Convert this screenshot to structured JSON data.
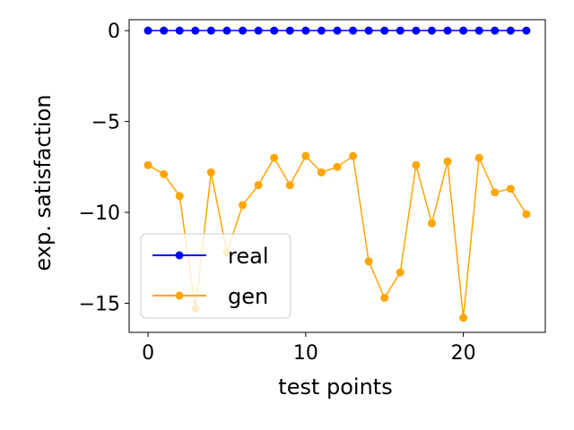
{
  "chart_data": {
    "type": "line",
    "xlabel": "test points",
    "ylabel": "exp. satisfaction",
    "xlim": [
      -1.2,
      25.2
    ],
    "ylim": [
      -16.6,
      0.6
    ],
    "xticks": [
      0,
      10,
      20
    ],
    "yticks": [
      0,
      -5,
      -10,
      -15
    ],
    "ytick_labels": [
      "0",
      "−5",
      "−10",
      "−15"
    ],
    "grid": false,
    "legend_position": "lower-left",
    "x": [
      0,
      1,
      2,
      3,
      4,
      5,
      6,
      7,
      8,
      9,
      10,
      11,
      12,
      13,
      14,
      15,
      16,
      17,
      18,
      19,
      20,
      21,
      22,
      23,
      24
    ],
    "series": [
      {
        "name": "real",
        "color": "#0000ff",
        "values": [
          0,
          0,
          0,
          0,
          0,
          0,
          0,
          0,
          0,
          0,
          0,
          0,
          0,
          0,
          0,
          0,
          0,
          0,
          0,
          0,
          0,
          0,
          0,
          0,
          0
        ]
      },
      {
        "name": "gen",
        "color": "#ffa500",
        "values": [
          -7.4,
          -7.9,
          -9.1,
          -15.3,
          -7.8,
          -12.2,
          -9.6,
          -8.5,
          -7.0,
          -8.5,
          -6.9,
          -7.8,
          -7.5,
          -6.9,
          -12.7,
          -14.7,
          -13.3,
          -7.4,
          -10.6,
          -7.2,
          -15.8,
          -7.0,
          -8.9,
          -8.7,
          -10.1
        ]
      }
    ]
  }
}
